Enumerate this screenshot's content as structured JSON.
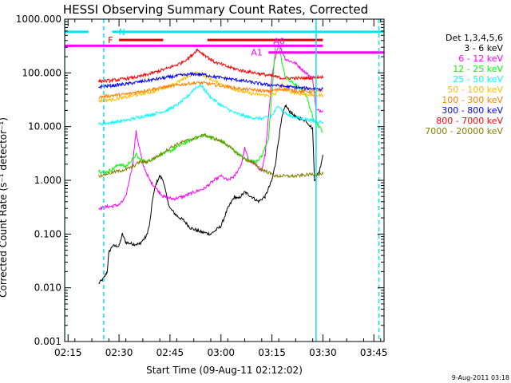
{
  "chart_data": {
    "type": "line",
    "title": "HESSI Observing Summary Count Rates, Corrected",
    "xlabel": "Start Time (09-Aug-11 02:12:02)",
    "ylabel": "Corrected Count Rate (s⁻¹ detector⁻¹)",
    "yscale": "log",
    "ylim": [
      0.001,
      1000
    ],
    "xlim_minutes": [
      2.0,
      96.0
    ],
    "x_ticks": [
      "02:15",
      "02:30",
      "02:45",
      "03:00",
      "03:15",
      "03:30",
      "03:45"
    ],
    "x_tick_minutes": [
      3,
      18,
      33,
      48,
      63,
      78,
      93
    ],
    "y_ticks": [
      "1000.000",
      "100.000",
      "10.000",
      "1.000",
      "0.100",
      "0.010",
      "0.001"
    ],
    "y_tick_values": [
      1000,
      100,
      10,
      1,
      0.1,
      0.01,
      0.001
    ],
    "legend_title": "Det 1,3,4,5,6",
    "legend_position": "right",
    "stamp": "9-Aug-2011 03:18",
    "series": [
      {
        "name": "3 - 6 keV",
        "color": "#000000",
        "points": [
          [
            12,
            0.012
          ],
          [
            13.5,
            0.015
          ],
          [
            14.5,
            0.02
          ],
          [
            15,
            0.045
          ],
          [
            16,
            0.06
          ],
          [
            18,
            0.06
          ],
          [
            19,
            0.1
          ],
          [
            20,
            0.07
          ],
          [
            22,
            0.065
          ],
          [
            24,
            0.065
          ],
          [
            26,
            0.09
          ],
          [
            27,
            0.15
          ],
          [
            28,
            0.5
          ],
          [
            29,
            0.9
          ],
          [
            30,
            1.2
          ],
          [
            31,
            1.0
          ],
          [
            32,
            0.5
          ],
          [
            33,
            0.3
          ],
          [
            35,
            0.22
          ],
          [
            37,
            0.18
          ],
          [
            39,
            0.13
          ],
          [
            42,
            0.11
          ],
          [
            45,
            0.1
          ],
          [
            48,
            0.14
          ],
          [
            50,
            0.3
          ],
          [
            52,
            0.5
          ],
          [
            53,
            0.45
          ],
          [
            55,
            0.6
          ],
          [
            57,
            0.5
          ],
          [
            59,
            0.4
          ],
          [
            61,
            0.5
          ],
          [
            63,
            1.0
          ],
          [
            64,
            2.0
          ],
          [
            65,
            6.0
          ],
          [
            66,
            15.0
          ],
          [
            67,
            25.0
          ],
          [
            68,
            20.0
          ],
          [
            70,
            15.0
          ],
          [
            73,
            13.0
          ],
          [
            75,
            9.0
          ],
          [
            75.5,
            1.0
          ],
          [
            77,
            1.5
          ],
          [
            78,
            3.0
          ]
        ]
      },
      {
        "name": "6 - 12 keV",
        "color": "#ff00ff",
        "points": [
          [
            12,
            0.3
          ],
          [
            14,
            0.32
          ],
          [
            16,
            0.33
          ],
          [
            18,
            0.35
          ],
          [
            19,
            0.4
          ],
          [
            20,
            0.5
          ],
          [
            22,
            2.0
          ],
          [
            23,
            8.0
          ],
          [
            24,
            4.0
          ],
          [
            25,
            2.0
          ],
          [
            27,
            1.0
          ],
          [
            29,
            0.7
          ],
          [
            31,
            0.5
          ],
          [
            34,
            0.45
          ],
          [
            37,
            0.5
          ],
          [
            40,
            0.6
          ],
          [
            43,
            0.7
          ],
          [
            46,
            1.0
          ],
          [
            48,
            1.2
          ],
          [
            50,
            1.0
          ],
          [
            52,
            1.2
          ],
          [
            54,
            2.0
          ],
          [
            55,
            4.0
          ],
          [
            56,
            2.5
          ],
          [
            58,
            2.0
          ],
          [
            60,
            1.5
          ],
          [
            61,
            3.0
          ],
          [
            62,
            15.0
          ],
          [
            63,
            80.0
          ],
          [
            64,
            200.0
          ],
          [
            65,
            350.0
          ],
          [
            66,
            250.0
          ],
          [
            67,
            180.0
          ],
          [
            70,
            150.0
          ],
          [
            73,
            100.0
          ],
          [
            75,
            80.0
          ],
          [
            76,
            20.0
          ],
          [
            78,
            20.0
          ]
        ]
      },
      {
        "name": "12 - 25 keV",
        "color": "#00ff00",
        "points": [
          [
            12,
            1.5
          ],
          [
            14,
            1.4
          ],
          [
            16,
            1.6
          ],
          [
            18,
            2.0
          ],
          [
            20,
            1.8
          ],
          [
            22,
            2.5
          ],
          [
            23,
            3.0
          ],
          [
            24,
            2.5
          ],
          [
            26,
            2.2
          ],
          [
            28,
            2.5
          ],
          [
            30,
            3.0
          ],
          [
            33,
            3.5
          ],
          [
            36,
            4.5
          ],
          [
            40,
            6.0
          ],
          [
            43,
            7.0
          ],
          [
            46,
            6.0
          ],
          [
            49,
            5.0
          ],
          [
            52,
            3.5
          ],
          [
            55,
            2.5
          ],
          [
            58,
            2.2
          ],
          [
            60,
            2.8
          ],
          [
            62,
            6.0
          ],
          [
            63,
            40.0
          ],
          [
            64,
            300.0
          ],
          [
            65,
            350.0
          ],
          [
            66,
            150.0
          ],
          [
            67,
            80.0
          ],
          [
            70,
            60.0
          ],
          [
            73,
            40.0
          ],
          [
            75,
            15.0
          ],
          [
            78,
            8.0
          ]
        ]
      },
      {
        "name": "25 - 50 keV",
        "color": "#00ffff",
        "points": [
          [
            12,
            11.0
          ],
          [
            16,
            12.0
          ],
          [
            20,
            13.0
          ],
          [
            24,
            15.0
          ],
          [
            28,
            17.0
          ],
          [
            32,
            20.0
          ],
          [
            35,
            25.0
          ],
          [
            38,
            35.0
          ],
          [
            40,
            50.0
          ],
          [
            42,
            60.0
          ],
          [
            43,
            50.0
          ],
          [
            45,
            35.0
          ],
          [
            48,
            25.0
          ],
          [
            52,
            18.0
          ],
          [
            56,
            15.0
          ],
          [
            60,
            14.0
          ],
          [
            63,
            16.0
          ],
          [
            65,
            25.0
          ],
          [
            66,
            20.0
          ],
          [
            68,
            16.0
          ],
          [
            72,
            14.0
          ],
          [
            75,
            13.0
          ],
          [
            78,
            12.0
          ]
        ]
      },
      {
        "name": "50 - 100 keV",
        "color": "#ffbb00",
        "points": [
          [
            12,
            30.0
          ],
          [
            16,
            32.0
          ],
          [
            20,
            35.0
          ],
          [
            24,
            40.0
          ],
          [
            28,
            45.0
          ],
          [
            32,
            55.0
          ],
          [
            36,
            70.0
          ],
          [
            39,
            90.0
          ],
          [
            41,
            100.0
          ],
          [
            43,
            90.0
          ],
          [
            46,
            70.0
          ],
          [
            50,
            55.0
          ],
          [
            54,
            45.0
          ],
          [
            58,
            40.0
          ],
          [
            62,
            38.0
          ],
          [
            64,
            40.0
          ],
          [
            66,
            60.0
          ],
          [
            68,
            45.0
          ],
          [
            72,
            40.0
          ],
          [
            78,
            38.0
          ]
        ]
      },
      {
        "name": "100 - 300 keV",
        "color": "#ff8000",
        "points": [
          [
            12,
            35.0
          ],
          [
            16,
            38.0
          ],
          [
            20,
            40.0
          ],
          [
            24,
            45.0
          ],
          [
            28,
            50.0
          ],
          [
            32,
            55.0
          ],
          [
            36,
            60.0
          ],
          [
            40,
            65.0
          ],
          [
            43,
            65.0
          ],
          [
            46,
            60.0
          ],
          [
            50,
            55.0
          ],
          [
            54,
            50.0
          ],
          [
            58,
            48.0
          ],
          [
            62,
            45.0
          ],
          [
            64,
            48.0
          ],
          [
            66,
            50.0
          ],
          [
            68,
            48.0
          ],
          [
            72,
            45.0
          ],
          [
            78,
            45.0
          ]
        ]
      },
      {
        "name": "300 - 800 keV",
        "color": "#0000ff",
        "points": [
          [
            12,
            55.0
          ],
          [
            16,
            58.0
          ],
          [
            20,
            62.0
          ],
          [
            24,
            68.0
          ],
          [
            28,
            75.0
          ],
          [
            32,
            82.0
          ],
          [
            36,
            90.0
          ],
          [
            40,
            95.0
          ],
          [
            43,
            93.0
          ],
          [
            46,
            85.0
          ],
          [
            50,
            78.0
          ],
          [
            54,
            72.0
          ],
          [
            58,
            65.0
          ],
          [
            62,
            60.0
          ],
          [
            65,
            58.0
          ],
          [
            68,
            55.0
          ],
          [
            72,
            52.0
          ],
          [
            78,
            50.0
          ]
        ]
      },
      {
        "name": "800 - 7000 keV",
        "color": "#ff0000",
        "points": [
          [
            12,
            70.0
          ],
          [
            16,
            72.0
          ],
          [
            20,
            78.0
          ],
          [
            24,
            85.0
          ],
          [
            28,
            100.0
          ],
          [
            32,
            120.0
          ],
          [
            36,
            150.0
          ],
          [
            39,
            200.0
          ],
          [
            41,
            270.0
          ],
          [
            43,
            220.0
          ],
          [
            46,
            160.0
          ],
          [
            50,
            130.0
          ],
          [
            54,
            110.0
          ],
          [
            58,
            100.0
          ],
          [
            62,
            90.0
          ],
          [
            64,
            85.0
          ],
          [
            66,
            80.0
          ],
          [
            70,
            80.0
          ],
          [
            74,
            80.0
          ],
          [
            78,
            85.0
          ]
        ]
      },
      {
        "name": "7000 - 20000 keV",
        "color": "#808000",
        "points": [
          [
            12,
            1.2
          ],
          [
            14,
            1.3
          ],
          [
            16,
            1.4
          ],
          [
            18,
            1.5
          ],
          [
            20,
            1.6
          ],
          [
            22,
            1.8
          ],
          [
            24,
            2.2
          ],
          [
            26,
            2.2
          ],
          [
            28,
            2.5
          ],
          [
            30,
            3.0
          ],
          [
            33,
            4.0
          ],
          [
            36,
            5.0
          ],
          [
            40,
            6.0
          ],
          [
            43,
            7.0
          ],
          [
            46,
            6.0
          ],
          [
            49,
            5.0
          ],
          [
            52,
            3.5
          ],
          [
            55,
            2.5
          ],
          [
            58,
            2.0
          ],
          [
            60,
            1.6
          ],
          [
            62,
            1.4
          ],
          [
            64,
            1.2
          ],
          [
            66,
            1.2
          ],
          [
            70,
            1.2
          ],
          [
            75,
            1.3
          ],
          [
            78,
            1.3
          ]
        ]
      }
    ],
    "annotations": [
      {
        "label": "N",
        "color": "#00e5ee",
        "y": 580,
        "segments": [
          [
            2,
            9
          ],
          [
            16,
            78
          ],
          [
            78,
            96
          ]
        ]
      },
      {
        "label": "F",
        "color": "#dd0000",
        "y": 410,
        "segments": [
          [
            18,
            31
          ],
          [
            44,
            78
          ]
        ]
      },
      {
        "label": "A0",
        "color": "#ff00ff",
        "y": 320,
        "segments": [
          [
            2,
            78
          ]
        ]
      },
      {
        "label": "A1",
        "color": "#ff00ff",
        "y": 240,
        "segments": [
          [
            62,
            96
          ]
        ]
      }
    ],
    "vertical_lines": [
      {
        "x": 2.0,
        "color": "#00e5ee",
        "style": "solid"
      },
      {
        "x": 13.5,
        "color": "#00e5ee",
        "style": "dashed"
      },
      {
        "x": 76.0,
        "color": "#00e5ee",
        "style": "solid"
      },
      {
        "x": 94.5,
        "color": "#00e5ee",
        "style": "dashed"
      }
    ]
  }
}
